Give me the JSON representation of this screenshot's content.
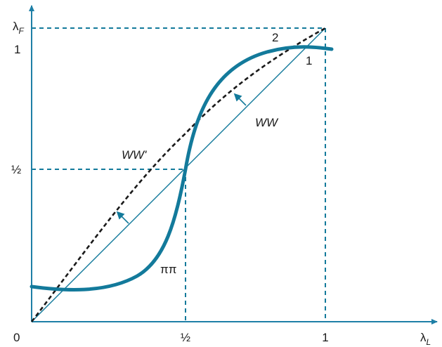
{
  "axes": {
    "x_symbol": "λ",
    "x_subscript": "L",
    "y_symbol": "λ",
    "y_subscript": "F",
    "origin_label": "0",
    "x_ticks": [
      "½",
      "1"
    ],
    "y_ticks": [
      "1",
      "½"
    ]
  },
  "curve_labels": {
    "ww": "WW",
    "ww_prime": "WW'",
    "pipi": "ππ",
    "point_1": "1",
    "point_2": "2"
  },
  "colors": {
    "accent": "#137a9b",
    "axis": "#1e7fa6",
    "dashed_curve": "#1a1a1a",
    "text": "#1a1a1a"
  }
}
